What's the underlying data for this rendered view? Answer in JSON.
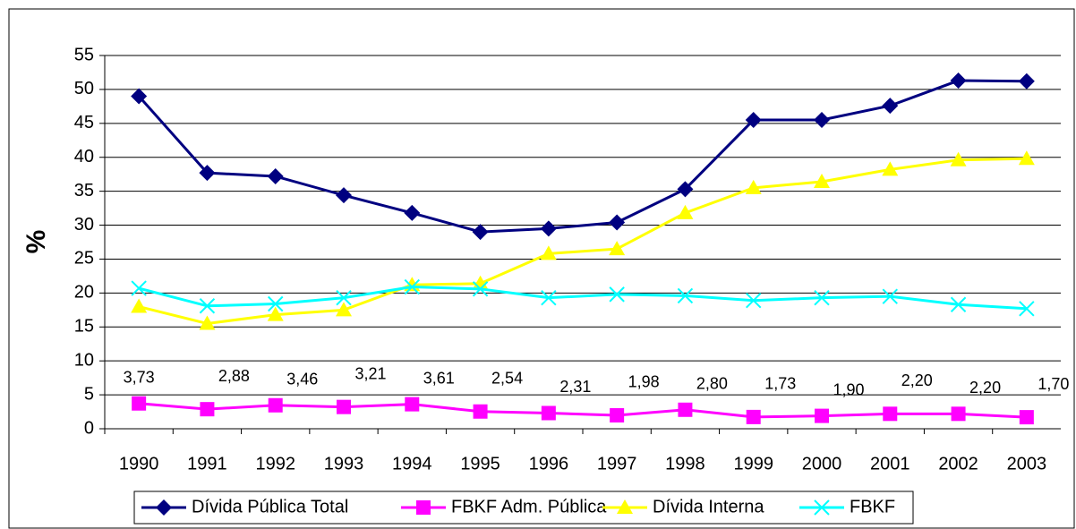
{
  "chart_data": {
    "type": "line",
    "y_label": "%",
    "categories": [
      "1990",
      "1991",
      "1992",
      "1993",
      "1994",
      "1995",
      "1996",
      "1997",
      "1998",
      "1999",
      "2000",
      "2001",
      "2002",
      "2003"
    ],
    "ylim": [
      0,
      55
    ],
    "yticks": [
      0,
      5,
      10,
      15,
      20,
      25,
      30,
      35,
      40,
      45,
      50,
      55
    ],
    "grid": true,
    "legend": "bottom",
    "series": [
      {
        "name": "Dívida Pública Total",
        "color": "#000080",
        "marker": "diamond",
        "values": [
          49,
          37.7,
          37.2,
          34.4,
          31.8,
          29,
          29.5,
          30.4,
          35.3,
          45.5,
          45.5,
          47.6,
          51.3,
          51.2
        ]
      },
      {
        "name": "FBKF Adm. Pública",
        "color": "#ff00ff",
        "marker": "square",
        "values": [
          3.73,
          2.88,
          3.46,
          3.21,
          3.61,
          2.54,
          2.31,
          1.98,
          2.8,
          1.73,
          1.9,
          2.2,
          2.2,
          1.7
        ],
        "value_labels": [
          "3,73",
          "2,88",
          "3,46",
          "3,21",
          "3,61",
          "2,54",
          "2,31",
          "1,98",
          "2,80",
          "1,73",
          "1,90",
          "2,20",
          "2,20",
          "1,70"
        ]
      },
      {
        "name": "Dívida Interna",
        "color": "#ffff00",
        "marker": "triangle",
        "values": [
          18,
          15.5,
          16.8,
          17.5,
          21.2,
          21.4,
          25.8,
          26.5,
          31.8,
          35.5,
          36.4,
          38.2,
          39.6,
          39.8
        ]
      },
      {
        "name": "FBKF",
        "color": "#00ffff",
        "marker": "x",
        "values": [
          20.7,
          18.1,
          18.4,
          19.3,
          20.9,
          20.6,
          19.3,
          19.8,
          19.6,
          18.9,
          19.3,
          19.5,
          18.3,
          17.7
        ]
      }
    ]
  }
}
